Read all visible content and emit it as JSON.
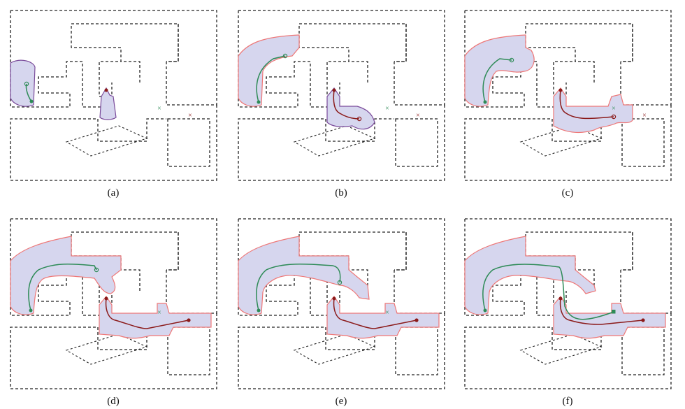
{
  "figure": {
    "panels": [
      {
        "id": "a",
        "caption": "(a)"
      },
      {
        "id": "b",
        "caption": "(b)"
      },
      {
        "id": "c",
        "caption": "(c)"
      },
      {
        "id": "d",
        "caption": "(d)"
      },
      {
        "id": "e",
        "caption": "(e)"
      },
      {
        "id": "f",
        "caption": "(f)"
      }
    ]
  },
  "colors": {
    "wall": "#222222",
    "region_fill": "#d6d6ee",
    "region_border_boundary": "#7a4a9a",
    "region_border_explored": "#ee7777",
    "green_path": "#2e8b57",
    "red_path": "#8b1a1a"
  },
  "icons": {
    "start": "filled-circle",
    "frontier": "hollow-circle",
    "goal": "x-mark",
    "meeting": "filled-square"
  }
}
